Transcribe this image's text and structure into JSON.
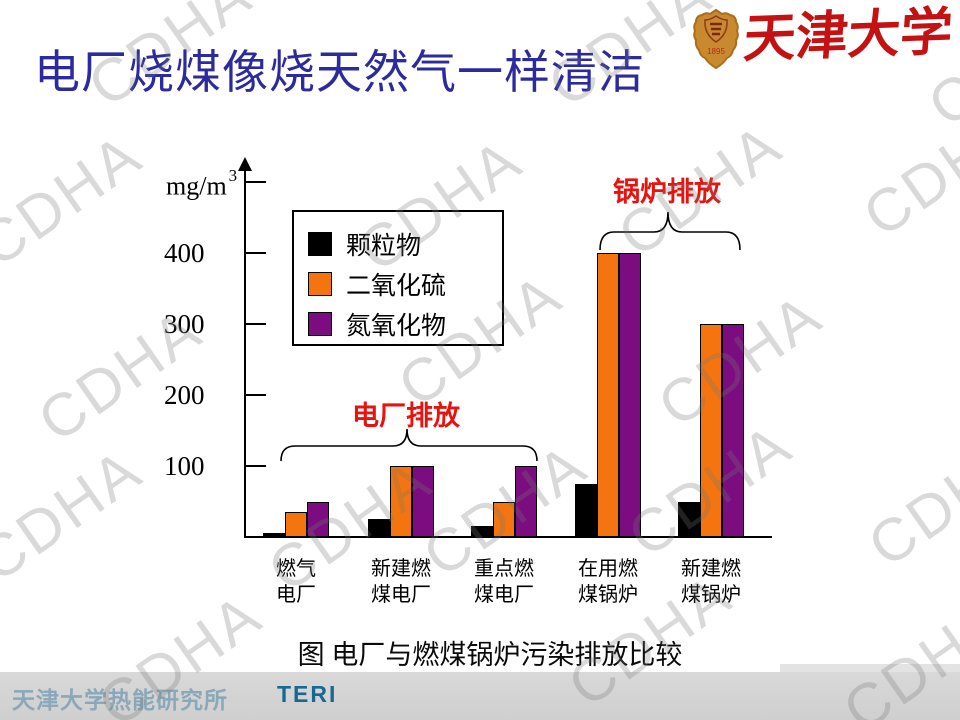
{
  "slide": {
    "title": "电厂烧煤像烧天然气一样清洁",
    "caption": "图  电厂与燃煤锅炉污染排放比较",
    "watermark_text": "CDHA",
    "logo": {
      "university_name": "天津大学",
      "year": "1895"
    },
    "footer": {
      "institute": "天津大学热能研究所",
      "acronym": "TERI"
    }
  },
  "chart_data": {
    "type": "bar",
    "title": "图 电厂与燃煤锅炉污染排放比较",
    "unit_label": "mg/m",
    "unit_sup": "3",
    "ylabel": "mg/m3",
    "xlabel": "",
    "ylim": [
      0,
      500
    ],
    "grid": false,
    "legend_position": "upper-left-inside",
    "y_ticks": [
      400,
      300,
      200,
      100
    ],
    "categories": [
      "燃气电厂",
      "新建燃煤电厂",
      "重点燃煤电厂",
      "在用燃煤锅炉",
      "新建燃煤锅炉"
    ],
    "category_lines": [
      [
        "燃气",
        "电厂"
      ],
      [
        "新建燃",
        "煤电厂"
      ],
      [
        "重点燃",
        "煤电厂"
      ],
      [
        "在用燃",
        "煤锅炉"
      ],
      [
        "新建燃",
        "煤锅炉"
      ]
    ],
    "series": [
      {
        "name": "颗粒物",
        "color": "#000000",
        "values": [
          5,
          25,
          15,
          75,
          50
        ]
      },
      {
        "name": "二氧化硫",
        "color": "#F4750F",
        "values": [
          35,
          100,
          50,
          400,
          300
        ]
      },
      {
        "name": "氮氧化物",
        "color": "#7C0D80",
        "values": [
          50,
          100,
          100,
          400,
          300
        ]
      }
    ],
    "group_annotations": [
      {
        "label": "电厂排放",
        "groups": [
          0,
          1,
          2
        ]
      },
      {
        "label": "锅炉排放",
        "groups": [
          3,
          4
        ]
      }
    ]
  },
  "colors": {
    "title_blue": "#2B2B9E",
    "annotation_red": "#E8120E",
    "so2_orange": "#F4750F",
    "nox_purple": "#7C0D80",
    "pm_black": "#000000",
    "logo_red": "#C41111",
    "shield_gold": "#C98A2F",
    "footer_band": "#D6D6D6",
    "footer_acronym_blue": "#18688F"
  }
}
